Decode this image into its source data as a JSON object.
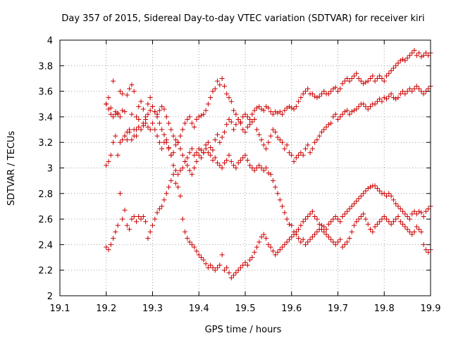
{
  "chart_data": {
    "type": "scatter",
    "title": "Day 357 of 2015, Sidereal Day-to-day VTEC variation (SDTVAR) for receiver kiri",
    "xlabel": "GPS time / hours",
    "ylabel": "SDTVAR / TECUs",
    "xlim": [
      19.1,
      19.9
    ],
    "ylim": [
      2,
      4
    ],
    "x_ticks": [
      "19.1",
      "19.2",
      "19.3",
      "19.4",
      "19.5",
      "19.6",
      "19.7",
      "19.8",
      "19.9"
    ],
    "y_ticks": [
      "2",
      "2.2",
      "2.4",
      "2.6",
      "2.8",
      "3",
      "3.2",
      "3.4",
      "3.6",
      "3.8",
      "4"
    ],
    "grid": true,
    "marker": "plus",
    "colors": {
      "points": "#cc0000",
      "grid": "#a0a0a0",
      "axis": "#000000"
    },
    "series": [
      {
        "x": [
          19.2,
          19.205,
          19.21,
          19.215,
          19.22,
          19.225,
          19.23,
          19.235,
          19.24,
          19.245,
          19.25,
          19.255,
          19.26,
          19.265,
          19.27,
          19.275,
          19.28,
          19.285,
          19.29,
          19.295,
          19.3,
          19.305,
          19.31,
          19.315,
          19.32,
          19.325,
          19.33,
          19.335,
          19.34,
          19.345,
          19.35,
          19.355,
          19.36,
          19.365,
          19.37,
          19.375,
          19.38,
          19.385,
          19.39,
          19.395,
          19.4,
          19.405,
          19.41,
          19.415,
          19.42,
          19.425,
          19.43,
          19.435,
          19.44,
          19.445,
          19.45,
          19.455,
          19.46,
          19.465,
          19.47,
          19.475,
          19.48,
          19.485,
          19.49,
          19.495,
          19.5,
          19.505,
          19.51,
          19.515,
          19.52,
          19.525,
          19.53,
          19.535,
          19.54,
          19.545,
          19.55,
          19.555,
          19.56,
          19.565,
          19.57,
          19.575,
          19.58,
          19.585,
          19.59,
          19.595,
          19.6,
          19.605,
          19.61,
          19.615,
          19.62,
          19.625,
          19.63,
          19.635,
          19.64,
          19.645,
          19.65,
          19.655,
          19.66,
          19.665,
          19.67,
          19.675,
          19.68,
          19.685,
          19.69,
          19.695,
          19.7,
          19.705,
          19.71,
          19.715,
          19.72,
          19.725,
          19.73,
          19.735,
          19.74,
          19.745,
          19.75,
          19.755,
          19.76,
          19.765,
          19.77,
          19.775,
          19.78,
          19.785,
          19.79,
          19.795,
          19.8,
          19.805,
          19.81,
          19.815,
          19.82,
          19.825,
          19.83,
          19.835,
          19.84,
          19.845,
          19.85,
          19.855,
          19.86,
          19.865,
          19.87,
          19.875,
          19.88,
          19.885,
          19.89,
          19.895,
          19.9
        ],
        "y": [
          3.5,
          3.55,
          3.47,
          3.68,
          3.42,
          3.43,
          3.6,
          3.58,
          3.44,
          3.57,
          3.62,
          3.65,
          3.6,
          3.4,
          3.48,
          3.52,
          3.46,
          3.4,
          3.5,
          3.55,
          3.48,
          3.44,
          3.42,
          3.45,
          3.48,
          3.46,
          3.4,
          3.35,
          3.3,
          3.25,
          3.22,
          3.2,
          3.25,
          3.3,
          3.35,
          3.38,
          3.4,
          3.35,
          3.32,
          3.38,
          3.4,
          3.41,
          3.42,
          3.45,
          3.5,
          3.55,
          3.6,
          3.62,
          3.68,
          3.65,
          3.7,
          3.64,
          3.58,
          3.55,
          3.52,
          3.45,
          3.42,
          3.38,
          3.35,
          3.4,
          3.42,
          3.4,
          3.38,
          3.42,
          3.45,
          3.47,
          3.48,
          3.46,
          3.45,
          3.48,
          3.47,
          3.44,
          3.42,
          3.44,
          3.43,
          3.44,
          3.42,
          3.45,
          3.47,
          3.48,
          3.47,
          3.46,
          3.48,
          3.52,
          3.55,
          3.58,
          3.6,
          3.62,
          3.58,
          3.58,
          3.56,
          3.55,
          3.56,
          3.58,
          3.6,
          3.58,
          3.58,
          3.6,
          3.62,
          3.63,
          3.6,
          3.62,
          3.66,
          3.68,
          3.7,
          3.68,
          3.7,
          3.72,
          3.74,
          3.7,
          3.68,
          3.66,
          3.67,
          3.68,
          3.7,
          3.72,
          3.68,
          3.7,
          3.72,
          3.7,
          3.68,
          3.72,
          3.74,
          3.76,
          3.78,
          3.8,
          3.82,
          3.84,
          3.85,
          3.84,
          3.86,
          3.88,
          3.9,
          3.92,
          3.88,
          3.9,
          3.87,
          3.88,
          3.9,
          3.88,
          3.9
        ]
      },
      {
        "x": [
          19.2,
          19.205,
          19.21,
          19.215,
          19.22,
          19.225,
          19.23,
          19.235,
          19.24,
          19.245,
          19.25,
          19.255,
          19.26,
          19.265,
          19.27,
          19.275,
          19.28,
          19.285,
          19.29,
          19.295,
          19.3,
          19.305,
          19.31,
          19.315,
          19.32,
          19.325,
          19.33,
          19.335,
          19.34,
          19.345,
          19.35,
          19.355,
          19.36,
          19.365,
          19.37,
          19.375,
          19.38,
          19.385,
          19.39,
          19.395,
          19.4,
          19.405,
          19.41,
          19.415,
          19.42,
          19.425,
          19.43,
          19.435,
          19.44,
          19.445,
          19.45,
          19.455,
          19.46,
          19.465,
          19.47,
          19.475,
          19.48,
          19.485,
          19.49,
          19.495,
          19.5,
          19.505,
          19.51,
          19.515,
          19.52,
          19.525,
          19.53,
          19.535,
          19.54,
          19.545,
          19.55,
          19.555,
          19.56,
          19.565,
          19.57,
          19.575,
          19.58,
          19.585,
          19.59,
          19.595,
          19.6,
          19.605,
          19.61,
          19.615,
          19.62,
          19.625,
          19.63,
          19.635,
          19.64,
          19.645,
          19.65,
          19.655,
          19.66,
          19.665,
          19.67,
          19.675,
          19.68,
          19.685,
          19.69,
          19.695,
          19.7,
          19.705,
          19.71,
          19.715,
          19.72,
          19.725,
          19.73,
          19.735,
          19.74,
          19.745,
          19.75,
          19.755,
          19.76,
          19.765,
          19.77,
          19.775,
          19.78,
          19.785,
          19.79,
          19.795,
          19.8,
          19.805,
          19.81,
          19.815,
          19.82,
          19.825,
          19.83,
          19.835,
          19.84,
          19.845,
          19.85,
          19.855,
          19.86,
          19.865,
          19.87,
          19.875,
          19.88,
          19.885,
          19.89,
          19.895,
          19.9
        ],
        "y": [
          3.5,
          3.46,
          3.42,
          3.4,
          3.44,
          3.42,
          3.4,
          3.45,
          3.25,
          3.22,
          3.28,
          3.42,
          3.3,
          3.25,
          3.38,
          3.3,
          3.33,
          3.35,
          3.32,
          3.3,
          3.35,
          3.3,
          3.25,
          3.2,
          3.15,
          3.2,
          3.22,
          3.16,
          3.1,
          3.12,
          3.18,
          3.2,
          3.15,
          3.1,
          3.05,
          3.08,
          3.12,
          3.15,
          3.1,
          3.12,
          3.15,
          3.14,
          3.12,
          3.18,
          3.2,
          3.16,
          3.14,
          3.22,
          3.26,
          3.2,
          3.24,
          3.28,
          3.34,
          3.38,
          3.36,
          3.3,
          3.34,
          3.38,
          3.36,
          3.3,
          3.28,
          3.32,
          3.34,
          3.36,
          3.38,
          3.3,
          3.26,
          3.22,
          3.18,
          3.15,
          3.2,
          3.25,
          3.3,
          3.28,
          3.24,
          3.22,
          3.2,
          3.15,
          3.18,
          3.12,
          3.1,
          3.05,
          3.08,
          3.1,
          3.12,
          3.1,
          3.15,
          3.18,
          3.12,
          3.15,
          3.2,
          3.22,
          3.25,
          3.28,
          3.3,
          3.32,
          3.34,
          3.35,
          3.4,
          3.42,
          3.38,
          3.4,
          3.42,
          3.44,
          3.45,
          3.42,
          3.44,
          3.45,
          3.46,
          3.48,
          3.5,
          3.5,
          3.48,
          3.46,
          3.48,
          3.5,
          3.5,
          3.52,
          3.54,
          3.52,
          3.55,
          3.54,
          3.56,
          3.58,
          3.55,
          3.54,
          3.55,
          3.58,
          3.6,
          3.58,
          3.6,
          3.62,
          3.6,
          3.62,
          3.64,
          3.62,
          3.6,
          3.58,
          3.6,
          3.62,
          3.64
        ]
      },
      {
        "x": [
          19.2,
          19.205,
          19.21,
          19.215,
          19.22,
          19.225,
          19.23,
          19.235,
          19.24,
          19.245,
          19.25,
          19.255,
          19.26,
          19.265,
          19.27,
          19.275,
          19.28,
          19.285,
          19.29,
          19.295,
          19.3,
          19.305,
          19.31,
          19.315,
          19.32,
          19.325,
          19.33,
          19.335,
          19.34,
          19.345,
          19.35,
          19.355,
          19.36,
          19.365,
          19.37,
          19.375,
          19.38,
          19.385,
          19.39,
          19.395,
          19.4,
          19.405,
          19.41,
          19.415,
          19.42,
          19.425,
          19.43,
          19.435,
          19.44,
          19.445,
          19.45,
          19.455,
          19.46,
          19.465,
          19.47,
          19.475,
          19.48,
          19.485,
          19.49,
          19.495,
          19.5,
          19.505,
          19.51,
          19.515,
          19.52,
          19.525,
          19.53,
          19.535,
          19.54,
          19.545,
          19.55,
          19.555,
          19.56,
          19.565,
          19.57,
          19.575,
          19.58,
          19.585,
          19.59,
          19.595,
          19.6,
          19.605,
          19.61,
          19.615,
          19.62,
          19.625,
          19.63,
          19.635,
          19.64,
          19.645,
          19.65,
          19.655,
          19.66,
          19.665,
          19.67,
          19.675,
          19.68,
          19.685,
          19.69,
          19.695,
          19.7,
          19.705,
          19.71,
          19.715,
          19.72,
          19.725,
          19.73,
          19.735,
          19.74,
          19.745,
          19.75,
          19.755,
          19.76,
          19.765,
          19.77,
          19.775,
          19.78,
          19.785,
          19.79,
          19.795,
          19.8,
          19.805,
          19.81,
          19.815,
          19.82,
          19.825,
          19.83,
          19.835,
          19.84,
          19.845,
          19.85,
          19.855,
          19.86,
          19.865,
          19.87,
          19.875,
          19.88,
          19.885,
          19.89,
          19.895,
          19.9
        ],
        "y": [
          3.02,
          3.05,
          3.1,
          3.2,
          3.25,
          3.1,
          3.2,
          3.22,
          3.25,
          3.28,
          3.3,
          3.22,
          3.25,
          3.3,
          3.32,
          3.3,
          3.35,
          3.38,
          3.42,
          3.45,
          3.48,
          3.44,
          3.4,
          3.35,
          3.3,
          3.26,
          3.2,
          3.15,
          3.1,
          3.02,
          2.98,
          2.95,
          2.98,
          3.0,
          3.05,
          3.02,
          2.98,
          2.95,
          3.0,
          3.05,
          3.1,
          3.08,
          3.12,
          3.15,
          3.12,
          3.1,
          3.06,
          3.08,
          3.04,
          3.02,
          3.0,
          3.04,
          3.06,
          3.1,
          3.05,
          3.02,
          3.0,
          3.04,
          3.06,
          3.08,
          3.1,
          3.06,
          3.02,
          3.0,
          2.98,
          3.0,
          3.02,
          3.0,
          2.98,
          3.0,
          2.96,
          2.95,
          2.9,
          2.85,
          2.8,
          2.75,
          2.7,
          2.65,
          2.6,
          2.56,
          2.55,
          2.5,
          2.48,
          2.45,
          2.42,
          2.44,
          2.4,
          2.42,
          2.44,
          2.46,
          2.48,
          2.5,
          2.52,
          2.55,
          2.54,
          2.52,
          2.56,
          2.58,
          2.6,
          2.62,
          2.6,
          2.58,
          2.62,
          2.64,
          2.66,
          2.68,
          2.7,
          2.72,
          2.74,
          2.76,
          2.78,
          2.8,
          2.82,
          2.84,
          2.85,
          2.86,
          2.86,
          2.84,
          2.82,
          2.8,
          2.8,
          2.78,
          2.8,
          2.78,
          2.75,
          2.72,
          2.7,
          2.68,
          2.66,
          2.64,
          2.62,
          2.6,
          2.64,
          2.66,
          2.64,
          2.66,
          2.65,
          2.62,
          2.66,
          2.68,
          2.7
        ]
      },
      {
        "x": [
          19.2,
          19.205,
          19.21,
          19.215,
          19.22,
          19.225,
          19.23,
          19.235,
          19.24,
          19.245,
          19.25,
          19.255,
          19.26,
          19.265,
          19.27,
          19.275,
          19.28,
          19.285,
          19.29,
          19.295,
          19.3,
          19.305,
          19.31,
          19.315,
          19.32,
          19.325,
          19.33,
          19.335,
          19.34,
          19.345,
          19.35,
          19.355,
          19.36,
          19.365,
          19.37,
          19.375,
          19.38,
          19.385,
          19.39,
          19.395,
          19.4,
          19.405,
          19.41,
          19.415,
          19.42,
          19.425,
          19.43,
          19.435,
          19.44,
          19.445,
          19.45,
          19.455,
          19.46,
          19.465,
          19.47,
          19.475,
          19.48,
          19.485,
          19.49,
          19.495,
          19.5,
          19.505,
          19.51,
          19.515,
          19.52,
          19.525,
          19.53,
          19.535,
          19.54,
          19.545,
          19.55,
          19.555,
          19.56,
          19.565,
          19.57,
          19.575,
          19.58,
          19.585,
          19.59,
          19.595,
          19.6,
          19.605,
          19.61,
          19.615,
          19.62,
          19.625,
          19.63,
          19.635,
          19.64,
          19.645,
          19.65,
          19.655,
          19.66,
          19.665,
          19.67,
          19.675,
          19.68,
          19.685,
          19.69,
          19.695,
          19.7,
          19.705,
          19.71,
          19.715,
          19.72,
          19.725,
          19.73,
          19.735,
          19.74,
          19.745,
          19.75,
          19.755,
          19.76,
          19.765,
          19.77,
          19.775,
          19.78,
          19.785,
          19.79,
          19.795,
          19.8,
          19.805,
          19.81,
          19.815,
          19.82,
          19.825,
          19.83,
          19.835,
          19.84,
          19.845,
          19.85,
          19.855,
          19.86,
          19.865,
          19.87,
          19.875,
          19.88,
          19.885,
          19.89,
          19.895,
          19.9
        ],
        "y": [
          2.38,
          2.36,
          2.4,
          2.45,
          2.5,
          2.55,
          2.8,
          2.6,
          2.67,
          2.55,
          2.52,
          2.6,
          2.62,
          2.58,
          2.62,
          2.6,
          2.62,
          2.58,
          2.45,
          2.5,
          2.55,
          2.6,
          2.65,
          2.68,
          2.7,
          2.75,
          2.8,
          2.85,
          2.9,
          2.95,
          2.88,
          2.85,
          2.78,
          2.6,
          2.5,
          2.45,
          2.42,
          2.4,
          2.38,
          2.35,
          2.32,
          2.3,
          2.28,
          2.25,
          2.22,
          2.24,
          2.22,
          2.2,
          2.22,
          2.24,
          2.32,
          2.2,
          2.22,
          2.18,
          2.14,
          2.16,
          2.18,
          2.2,
          2.22,
          2.24,
          2.26,
          2.24,
          2.28,
          2.3,
          2.34,
          2.38,
          2.42,
          2.46,
          2.48,
          2.45,
          2.4,
          2.38,
          2.35,
          2.32,
          2.34,
          2.36,
          2.38,
          2.4,
          2.42,
          2.44,
          2.46,
          2.48,
          2.5,
          2.52,
          2.55,
          2.58,
          2.6,
          2.62,
          2.64,
          2.66,
          2.62,
          2.6,
          2.56,
          2.52,
          2.5,
          2.48,
          2.46,
          2.44,
          2.42,
          2.4,
          2.42,
          2.44,
          2.38,
          2.4,
          2.42,
          2.45,
          2.5,
          2.55,
          2.58,
          2.6,
          2.62,
          2.64,
          2.6,
          2.56,
          2.52,
          2.5,
          2.54,
          2.56,
          2.58,
          2.6,
          2.62,
          2.6,
          2.58,
          2.56,
          2.58,
          2.6,
          2.62,
          2.58,
          2.56,
          2.54,
          2.52,
          2.5,
          2.48,
          2.5,
          2.54,
          2.52,
          2.5,
          2.4,
          2.36,
          2.34,
          2.36
        ]
      }
    ]
  }
}
